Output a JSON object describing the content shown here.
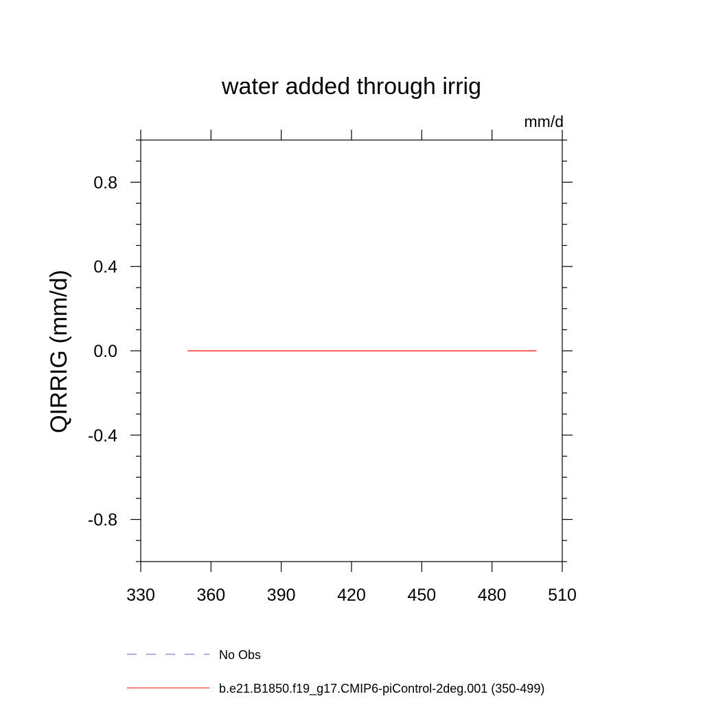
{
  "chart_data": {
    "type": "line",
    "title": "water added through irrig",
    "units_label": "mm/d",
    "ylabel": "QIRRIG  (mm/d)",
    "xlabel": "",
    "xlim": [
      330,
      510
    ],
    "ylim": [
      -1.0,
      1.0
    ],
    "x_ticks": [
      330,
      360,
      390,
      420,
      450,
      480,
      510
    ],
    "x_tick_labels": [
      "330",
      "360",
      "390",
      "420",
      "450",
      "480",
      "510"
    ],
    "y_ticks": [
      0.8,
      0.4,
      0.0,
      -0.4,
      -0.8
    ],
    "y_tick_labels": [
      "0.8",
      "0.4",
      "0.0",
      "-0.4",
      "-0.8"
    ],
    "grid": false,
    "legend_position": "bottom",
    "series": [
      {
        "name": "b.e21.B1850.f19_g17.CMIP6-piControl-2deg.001 (350-499)",
        "color": "#ff0000",
        "style": "solid",
        "x": [
          350,
          499
        ],
        "y": [
          0.0,
          0.0
        ]
      }
    ],
    "legend": [
      {
        "label": "No Obs",
        "color": "#6a5acd",
        "style": "dashed"
      },
      {
        "label": "b.e21.B1850.f19_g17.CMIP6-piControl-2deg.001 (350-499)",
        "color": "#ff0000",
        "style": "solid"
      }
    ]
  }
}
